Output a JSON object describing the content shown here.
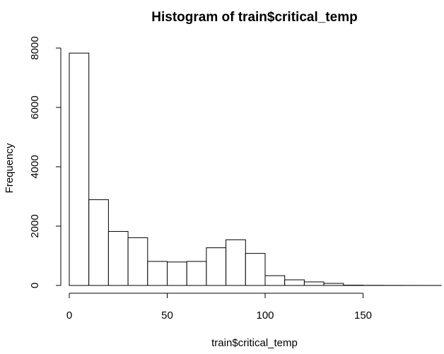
{
  "chart_data": {
    "type": "bar",
    "title": "Histogram of train$critical_temp",
    "xlabel": "train$critical_temp",
    "ylabel": "Frequency",
    "bin_width": 10,
    "bins": [
      {
        "from": 0,
        "to": 10,
        "count": 7830
      },
      {
        "from": 10,
        "to": 20,
        "count": 2890
      },
      {
        "from": 20,
        "to": 30,
        "count": 1820
      },
      {
        "from": 30,
        "to": 40,
        "count": 1610
      },
      {
        "from": 40,
        "to": 50,
        "count": 810
      },
      {
        "from": 50,
        "to": 60,
        "count": 790
      },
      {
        "from": 60,
        "to": 70,
        "count": 810
      },
      {
        "from": 70,
        "to": 80,
        "count": 1270
      },
      {
        "from": 80,
        "to": 90,
        "count": 1540
      },
      {
        "from": 90,
        "to": 100,
        "count": 1080
      },
      {
        "from": 100,
        "to": 110,
        "count": 330
      },
      {
        "from": 110,
        "to": 120,
        "count": 190
      },
      {
        "from": 120,
        "to": 130,
        "count": 120
      },
      {
        "from": 130,
        "to": 140,
        "count": 70
      },
      {
        "from": 140,
        "to": 150,
        "count": 10
      },
      {
        "from": 150,
        "to": 160,
        "count": 5
      },
      {
        "from": 160,
        "to": 170,
        "count": 3
      },
      {
        "from": 170,
        "to": 180,
        "count": 2
      },
      {
        "from": 180,
        "to": 190,
        "count": 1
      }
    ],
    "xlim": [
      0,
      190
    ],
    "ylim": [
      0,
      8000
    ],
    "x_ticks": [
      0,
      50,
      100,
      150
    ],
    "y_ticks": [
      0,
      2000,
      4000,
      6000,
      8000
    ],
    "grid": false,
    "bar_fill": "#ffffff",
    "bar_stroke": "#000000"
  }
}
